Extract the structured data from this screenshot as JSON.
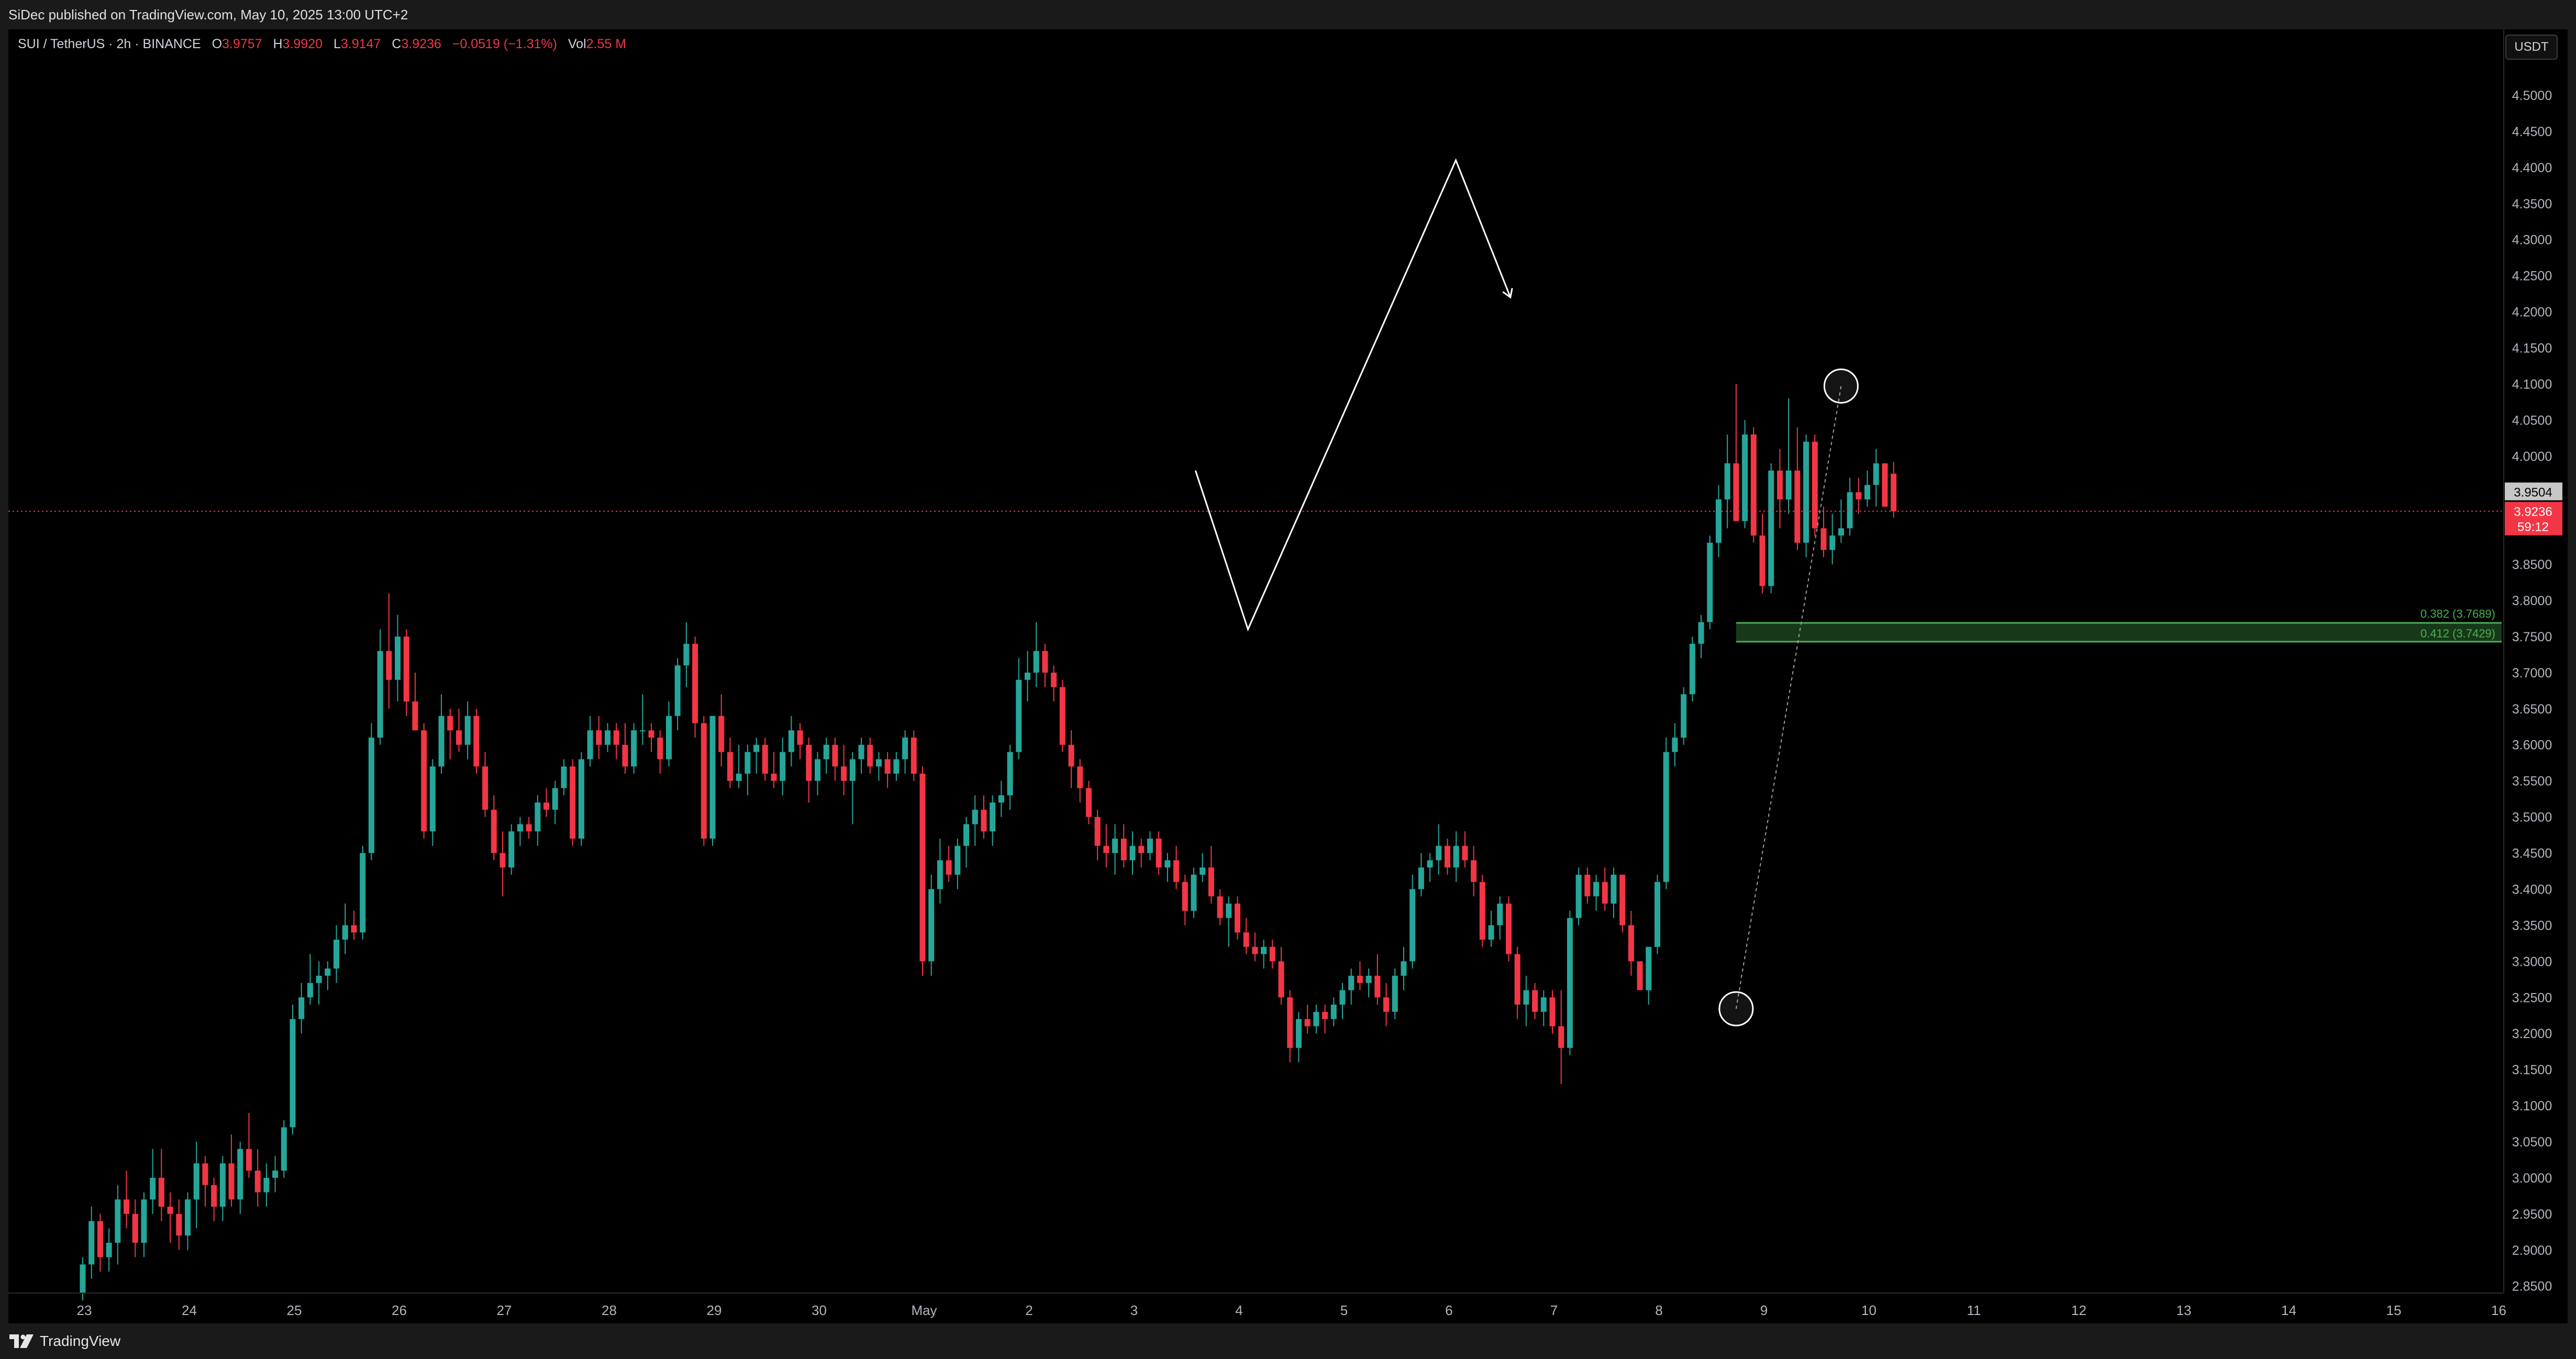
{
  "header": {
    "published": "SiDec published on TradingView.com, May 10, 2025 13:00 UTC+2"
  },
  "legend": {
    "symbol": "SUI / TetherUS · 2h · BINANCE",
    "open_label": "O",
    "open": "3.9757",
    "high_label": "H",
    "high": "3.9920",
    "low_label": "L",
    "low": "3.9147",
    "close_label": "C",
    "close": "3.9236",
    "change": "−0.0519 (−1.31%)",
    "vol_label": "Vol",
    "vol": "2.55 M"
  },
  "currency": "USDT",
  "footer": {
    "brand": "TradingView"
  },
  "chart_data": {
    "type": "candlestick",
    "symbol": "SUI / TetherUS",
    "interval": "2h",
    "exchange": "BINANCE",
    "ylim": [
      2.83,
      4.57
    ],
    "y_ticks": [
      "4.5000",
      "4.4500",
      "4.4000",
      "4.3500",
      "4.3000",
      "4.2500",
      "4.2000",
      "4.1500",
      "4.1000",
      "4.0500",
      "4.0000",
      "3.9500",
      "3.9000",
      "3.8500",
      "3.8000",
      "3.7500",
      "3.7000",
      "3.6500",
      "3.6000",
      "3.5500",
      "3.5000",
      "3.4500",
      "3.4000",
      "3.3500",
      "3.3000",
      "3.2500",
      "3.2000",
      "3.1500",
      "3.1000",
      "3.0500",
      "3.0000",
      "2.9500",
      "2.9000",
      "2.8500"
    ],
    "x_ticks": [
      "23",
      "24",
      "25",
      "26",
      "27",
      "28",
      "29",
      "30",
      "May",
      "2",
      "3",
      "4",
      "5",
      "6",
      "7",
      "8",
      "9",
      "10",
      "11",
      "12",
      "13",
      "14",
      "15",
      "16"
    ],
    "colors": {
      "up": "#26a69a",
      "down": "#f23645",
      "fib": "#4caf50",
      "projection": "#ffffff",
      "last_price": "#f23645"
    },
    "candles_per_day": 12,
    "start_day": "23",
    "candles": [
      [
        2.84,
        2.89,
        2.83,
        2.88
      ],
      [
        2.88,
        2.96,
        2.86,
        2.94
      ],
      [
        2.94,
        2.95,
        2.87,
        2.89
      ],
      [
        2.89,
        2.93,
        2.87,
        2.91
      ],
      [
        2.91,
        2.99,
        2.88,
        2.97
      ],
      [
        2.97,
        3.01,
        2.93,
        2.95
      ],
      [
        2.95,
        2.97,
        2.89,
        2.91
      ],
      [
        2.91,
        2.98,
        2.89,
        2.97
      ],
      [
        2.97,
        3.04,
        2.95,
        3.0
      ],
      [
        3.0,
        3.04,
        2.94,
        2.96
      ],
      [
        2.96,
        2.98,
        2.91,
        2.95
      ],
      [
        2.95,
        2.97,
        2.9,
        2.92
      ],
      [
        2.92,
        2.98,
        2.9,
        2.97
      ],
      [
        2.97,
        3.05,
        2.93,
        3.02
      ],
      [
        3.02,
        3.03,
        2.96,
        2.99
      ],
      [
        2.99,
        3.0,
        2.94,
        2.96
      ],
      [
        2.96,
        3.03,
        2.94,
        3.02
      ],
      [
        3.02,
        3.06,
        2.96,
        2.97
      ],
      [
        2.97,
        3.05,
        2.95,
        3.04
      ],
      [
        3.04,
        3.09,
        3.0,
        3.01
      ],
      [
        3.01,
        3.04,
        2.96,
        2.98
      ],
      [
        2.98,
        3.02,
        2.96,
        3.0
      ],
      [
        3.0,
        3.03,
        2.98,
        3.01
      ],
      [
        3.01,
        3.08,
        3.0,
        3.07
      ],
      [
        3.07,
        3.24,
        3.06,
        3.22
      ],
      [
        3.22,
        3.27,
        3.2,
        3.25
      ],
      [
        3.25,
        3.31,
        3.24,
        3.27
      ],
      [
        3.27,
        3.3,
        3.24,
        3.28
      ],
      [
        3.28,
        3.3,
        3.26,
        3.29
      ],
      [
        3.29,
        3.35,
        3.27,
        3.33
      ],
      [
        3.33,
        3.38,
        3.31,
        3.35
      ],
      [
        3.35,
        3.37,
        3.33,
        3.34
      ],
      [
        3.34,
        3.46,
        3.33,
        3.45
      ],
      [
        3.45,
        3.63,
        3.44,
        3.61
      ],
      [
        3.61,
        3.76,
        3.6,
        3.73
      ],
      [
        3.73,
        3.81,
        3.65,
        3.69
      ],
      [
        3.69,
        3.78,
        3.66,
        3.75
      ],
      [
        3.75,
        3.76,
        3.64,
        3.66
      ],
      [
        3.66,
        3.7,
        3.62,
        3.62
      ],
      [
        3.62,
        3.63,
        3.47,
        3.48
      ],
      [
        3.48,
        3.58,
        3.46,
        3.57
      ],
      [
        3.57,
        3.67,
        3.56,
        3.64
      ],
      [
        3.64,
        3.65,
        3.58,
        3.62
      ],
      [
        3.62,
        3.65,
        3.59,
        3.6
      ],
      [
        3.6,
        3.66,
        3.58,
        3.64
      ],
      [
        3.64,
        3.65,
        3.56,
        3.57
      ],
      [
        3.57,
        3.59,
        3.5,
        3.51
      ],
      [
        3.51,
        3.53,
        3.44,
        3.45
      ],
      [
        3.45,
        3.48,
        3.39,
        3.43
      ],
      [
        3.43,
        3.49,
        3.42,
        3.48
      ],
      [
        3.48,
        3.5,
        3.46,
        3.49
      ],
      [
        3.49,
        3.5,
        3.47,
        3.48
      ],
      [
        3.48,
        3.53,
        3.46,
        3.52
      ],
      [
        3.52,
        3.54,
        3.5,
        3.51
      ],
      [
        3.51,
        3.55,
        3.49,
        3.54
      ],
      [
        3.54,
        3.58,
        3.53,
        3.57
      ],
      [
        3.57,
        3.58,
        3.46,
        3.47
      ],
      [
        3.47,
        3.59,
        3.46,
        3.58
      ],
      [
        3.58,
        3.64,
        3.57,
        3.62
      ],
      [
        3.62,
        3.64,
        3.58,
        3.6
      ],
      [
        3.6,
        3.63,
        3.59,
        3.62
      ],
      [
        3.62,
        3.63,
        3.58,
        3.6
      ],
      [
        3.6,
        3.63,
        3.56,
        3.57
      ],
      [
        3.57,
        3.63,
        3.56,
        3.62
      ],
      [
        3.62,
        3.67,
        3.6,
        3.62
      ],
      [
        3.62,
        3.63,
        3.59,
        3.61
      ],
      [
        3.61,
        3.62,
        3.56,
        3.58
      ],
      [
        3.58,
        3.66,
        3.57,
        3.64
      ],
      [
        3.64,
        3.72,
        3.62,
        3.71
      ],
      [
        3.71,
        3.77,
        3.68,
        3.74
      ],
      [
        3.74,
        3.75,
        3.61,
        3.63
      ],
      [
        3.63,
        3.64,
        3.46,
        3.47
      ],
      [
        3.47,
        3.64,
        3.46,
        3.64
      ],
      [
        3.64,
        3.67,
        3.57,
        3.59
      ],
      [
        3.59,
        3.61,
        3.54,
        3.55
      ],
      [
        3.55,
        3.6,
        3.54,
        3.56
      ],
      [
        3.56,
        3.6,
        3.53,
        3.59
      ],
      [
        3.59,
        3.61,
        3.56,
        3.6
      ],
      [
        3.6,
        3.61,
        3.55,
        3.56
      ],
      [
        3.56,
        3.59,
        3.54,
        3.55
      ],
      [
        3.55,
        3.61,
        3.53,
        3.59
      ],
      [
        3.59,
        3.64,
        3.57,
        3.62
      ],
      [
        3.62,
        3.63,
        3.58,
        3.6
      ],
      [
        3.6,
        3.61,
        3.52,
        3.55
      ],
      [
        3.55,
        3.59,
        3.53,
        3.58
      ],
      [
        3.58,
        3.61,
        3.56,
        3.6
      ],
      [
        3.6,
        3.61,
        3.55,
        3.57
      ],
      [
        3.57,
        3.6,
        3.53,
        3.55
      ],
      [
        3.55,
        3.59,
        3.49,
        3.58
      ],
      [
        3.58,
        3.61,
        3.56,
        3.6
      ],
      [
        3.6,
        3.61,
        3.56,
        3.57
      ],
      [
        3.57,
        3.59,
        3.55,
        3.58
      ],
      [
        3.58,
        3.59,
        3.54,
        3.56
      ],
      [
        3.56,
        3.59,
        3.55,
        3.58
      ],
      [
        3.58,
        3.62,
        3.56,
        3.61
      ],
      [
        3.61,
        3.62,
        3.55,
        3.56
      ],
      [
        3.56,
        3.57,
        3.28,
        3.3
      ],
      [
        3.3,
        3.42,
        3.28,
        3.4
      ],
      [
        3.4,
        3.47,
        3.38,
        3.44
      ],
      [
        3.44,
        3.46,
        3.41,
        3.42
      ],
      [
        3.42,
        3.47,
        3.4,
        3.46
      ],
      [
        3.46,
        3.5,
        3.43,
        3.49
      ],
      [
        3.49,
        3.53,
        3.46,
        3.51
      ],
      [
        3.51,
        3.53,
        3.47,
        3.48
      ],
      [
        3.48,
        3.53,
        3.46,
        3.52
      ],
      [
        3.52,
        3.55,
        3.5,
        3.53
      ],
      [
        3.53,
        3.6,
        3.51,
        3.59
      ],
      [
        3.59,
        3.72,
        3.58,
        3.69
      ],
      [
        3.69,
        3.73,
        3.66,
        3.7
      ],
      [
        3.7,
        3.77,
        3.68,
        3.73
      ],
      [
        3.73,
        3.74,
        3.68,
        3.7
      ],
      [
        3.7,
        3.71,
        3.66,
        3.68
      ],
      [
        3.68,
        3.69,
        3.59,
        3.6
      ],
      [
        3.6,
        3.62,
        3.54,
        3.57
      ],
      [
        3.57,
        3.58,
        3.52,
        3.54
      ],
      [
        3.54,
        3.55,
        3.49,
        3.5
      ],
      [
        3.5,
        3.51,
        3.44,
        3.46
      ],
      [
        3.46,
        3.49,
        3.43,
        3.45
      ],
      [
        3.45,
        3.49,
        3.42,
        3.47
      ],
      [
        3.47,
        3.49,
        3.43,
        3.44
      ],
      [
        3.44,
        3.48,
        3.42,
        3.46
      ],
      [
        3.46,
        3.47,
        3.43,
        3.45
      ],
      [
        3.45,
        3.48,
        3.44,
        3.47
      ],
      [
        3.47,
        3.48,
        3.42,
        3.43
      ],
      [
        3.43,
        3.45,
        3.41,
        3.44
      ],
      [
        3.44,
        3.46,
        3.4,
        3.41
      ],
      [
        3.41,
        3.42,
        3.35,
        3.37
      ],
      [
        3.37,
        3.43,
        3.36,
        3.42
      ],
      [
        3.42,
        3.45,
        3.41,
        3.43
      ],
      [
        3.43,
        3.46,
        3.38,
        3.39
      ],
      [
        3.39,
        3.4,
        3.35,
        3.36
      ],
      [
        3.36,
        3.39,
        3.32,
        3.38
      ],
      [
        3.38,
        3.39,
        3.33,
        3.34
      ],
      [
        3.34,
        3.36,
        3.31,
        3.32
      ],
      [
        3.32,
        3.34,
        3.3,
        3.31
      ],
      [
        3.31,
        3.33,
        3.29,
        3.32
      ],
      [
        3.32,
        3.33,
        3.29,
        3.3
      ],
      [
        3.3,
        3.32,
        3.24,
        3.25
      ],
      [
        3.25,
        3.26,
        3.16,
        3.18
      ],
      [
        3.18,
        3.23,
        3.16,
        3.22
      ],
      [
        3.22,
        3.24,
        3.2,
        3.21
      ],
      [
        3.21,
        3.24,
        3.2,
        3.23
      ],
      [
        3.23,
        3.24,
        3.2,
        3.22
      ],
      [
        3.22,
        3.25,
        3.21,
        3.24
      ],
      [
        3.24,
        3.27,
        3.22,
        3.26
      ],
      [
        3.26,
        3.29,
        3.24,
        3.28
      ],
      [
        3.28,
        3.3,
        3.26,
        3.27
      ],
      [
        3.27,
        3.29,
        3.25,
        3.28
      ],
      [
        3.28,
        3.31,
        3.24,
        3.25
      ],
      [
        3.25,
        3.27,
        3.21,
        3.23
      ],
      [
        3.23,
        3.29,
        3.22,
        3.28
      ],
      [
        3.28,
        3.32,
        3.26,
        3.3
      ],
      [
        3.3,
        3.42,
        3.29,
        3.4
      ],
      [
        3.4,
        3.45,
        3.39,
        3.43
      ],
      [
        3.43,
        3.45,
        3.41,
        3.44
      ],
      [
        3.44,
        3.49,
        3.42,
        3.46
      ],
      [
        3.46,
        3.47,
        3.42,
        3.43
      ],
      [
        3.43,
        3.48,
        3.41,
        3.46
      ],
      [
        3.46,
        3.48,
        3.43,
        3.44
      ],
      [
        3.44,
        3.46,
        3.39,
        3.41
      ],
      [
        3.41,
        3.42,
        3.32,
        3.33
      ],
      [
        3.33,
        3.37,
        3.32,
        3.35
      ],
      [
        3.35,
        3.39,
        3.33,
        3.38
      ],
      [
        3.38,
        3.39,
        3.3,
        3.31
      ],
      [
        3.31,
        3.32,
        3.22,
        3.24
      ],
      [
        3.24,
        3.28,
        3.21,
        3.26
      ],
      [
        3.26,
        3.27,
        3.22,
        3.23
      ],
      [
        3.23,
        3.26,
        3.21,
        3.25
      ],
      [
        3.25,
        3.26,
        3.2,
        3.21
      ],
      [
        3.21,
        3.26,
        3.13,
        3.18
      ],
      [
        3.18,
        3.37,
        3.17,
        3.36
      ],
      [
        3.36,
        3.43,
        3.35,
        3.42
      ],
      [
        3.42,
        3.43,
        3.38,
        3.39
      ],
      [
        3.39,
        3.42,
        3.37,
        3.41
      ],
      [
        3.41,
        3.43,
        3.37,
        3.38
      ],
      [
        3.38,
        3.43,
        3.36,
        3.42
      ],
      [
        3.42,
        3.42,
        3.34,
        3.35
      ],
      [
        3.35,
        3.37,
        3.28,
        3.3
      ],
      [
        3.3,
        3.3,
        3.26,
        3.26
      ],
      [
        3.26,
        3.32,
        3.24,
        3.32
      ],
      [
        3.32,
        3.42,
        3.31,
        3.41
      ],
      [
        3.41,
        3.61,
        3.4,
        3.59
      ],
      [
        3.59,
        3.63,
        3.57,
        3.61
      ],
      [
        3.61,
        3.68,
        3.6,
        3.67
      ],
      [
        3.67,
        3.75,
        3.66,
        3.74
      ],
      [
        3.74,
        3.78,
        3.72,
        3.77
      ],
      [
        3.77,
        3.89,
        3.76,
        3.88
      ],
      [
        3.88,
        3.96,
        3.86,
        3.94
      ],
      [
        3.94,
        4.03,
        3.9,
        3.99
      ],
      [
        3.99,
        4.1,
        3.92,
        3.91
      ],
      [
        3.91,
        4.05,
        3.9,
        4.03
      ],
      [
        4.03,
        4.04,
        3.88,
        3.89
      ],
      [
        3.89,
        3.92,
        3.81,
        3.82
      ],
      [
        3.82,
        3.99,
        3.81,
        3.98
      ],
      [
        3.98,
        4.01,
        3.9,
        3.94
      ],
      [
        3.94,
        4.08,
        3.92,
        3.98
      ],
      [
        3.98,
        4.04,
        3.87,
        3.88
      ],
      [
        3.88,
        4.03,
        3.86,
        4.02
      ],
      [
        4.02,
        4.03,
        3.89,
        3.9
      ],
      [
        3.9,
        3.93,
        3.86,
        3.87
      ],
      [
        3.87,
        3.92,
        3.85,
        3.89
      ],
      [
        3.89,
        3.94,
        3.88,
        3.9
      ],
      [
        3.9,
        3.97,
        3.89,
        3.95
      ],
      [
        3.95,
        3.97,
        3.92,
        3.94
      ],
      [
        3.94,
        3.98,
        3.93,
        3.96
      ],
      [
        3.96,
        4.01,
        3.93,
        3.99
      ],
      [
        3.99,
        3.99,
        3.93,
        3.93
      ],
      [
        3.9757,
        3.992,
        3.9147,
        3.9236
      ]
    ],
    "current_price": "3.9236",
    "countdown": "59:12",
    "marker_price": "3.9504",
    "fib_levels": [
      {
        "ratio": "0.382",
        "price": 3.7689,
        "label": "0.382 (3.7689)"
      },
      {
        "ratio": "0.412",
        "price": 3.7429,
        "label": "0.412 (3.7429)"
      }
    ],
    "swing_low": {
      "price": 3.24,
      "candle": 189
    },
    "swing_high": {
      "price": 4.1,
      "candle": 201
    },
    "projection_path": [
      {
        "day": 10.6,
        "price": 3.98
      },
      {
        "day": 11.1,
        "price": 3.76
      },
      {
        "day": 13.08,
        "price": 4.41
      },
      {
        "day": 13.6,
        "price": 4.22
      }
    ]
  }
}
